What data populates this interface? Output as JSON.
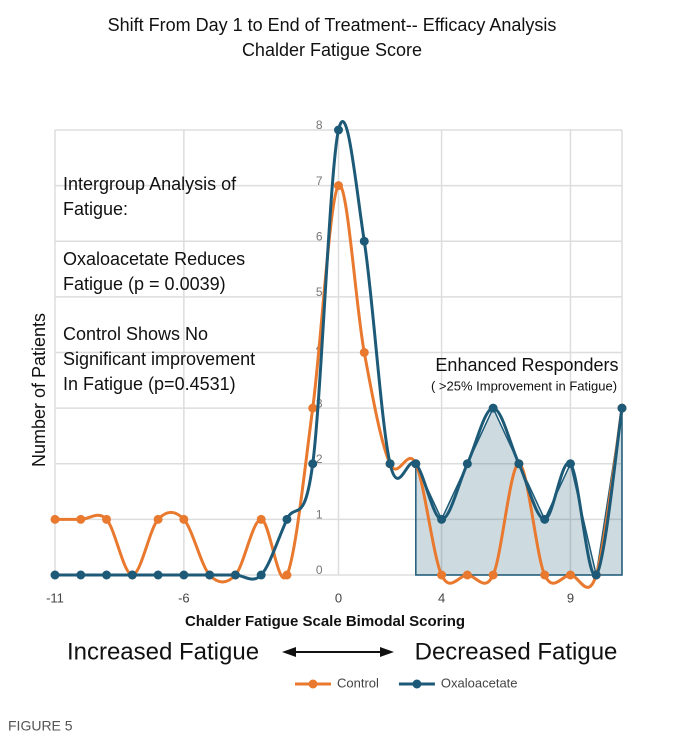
{
  "chart_data": {
    "type": "line",
    "title": [
      "Shift From Day 1 to End of Treatment-- Efficacy Analysis",
      "Chalder Fatigue Score"
    ],
    "xlabel": "Chalder Fatigue Scale Bimodal Scoring",
    "ylabel": "Number of Patients",
    "x": [
      -11,
      -10,
      -9,
      -8,
      -7,
      -6,
      -5,
      -4,
      -3,
      -2,
      -1,
      0,
      1,
      2,
      3,
      4,
      5,
      6,
      7,
      8,
      9,
      10,
      11
    ],
    "series": [
      {
        "name": "Control",
        "color": "#e8792e",
        "values": [
          1,
          1,
          1,
          0,
          1,
          1,
          0,
          0,
          1,
          0,
          3,
          7,
          4,
          2,
          2,
          0,
          0,
          0,
          2,
          0,
          0,
          0,
          3
        ]
      },
      {
        "name": "Oxaloacetate",
        "color": "#1d5a78",
        "values": [
          0,
          0,
          0,
          0,
          0,
          0,
          0,
          0,
          0,
          1,
          2,
          8,
          6,
          2,
          2,
          1,
          2,
          3,
          2,
          1,
          2,
          0,
          3
        ],
        "shade_x": [
          3,
          11
        ]
      }
    ],
    "xlim": [
      -11,
      11
    ],
    "xticks": [
      -11,
      -6,
      0,
      4,
      9
    ],
    "ylim": [
      0,
      8
    ],
    "yticks": [
      0,
      1,
      2,
      3,
      4,
      5,
      6,
      7,
      8
    ],
    "grid": true,
    "annotations": [
      "Intergroup Analysis of",
      "Fatigue:",
      "Oxaloacetate Reduces",
      "Fatigue (p = 0.0039)",
      "Control Shows No",
      "Significant improvement",
      "In Fatigue (p=0.4531)"
    ],
    "region_label": "Enhanced Responders",
    "region_sublabel": "( >25% Improvement in Fatigue)",
    "left_caption": "Increased Fatigue",
    "right_caption": "Decreased Fatigue",
    "legend": "bottom"
  },
  "figure_label": "FIGURE 5"
}
